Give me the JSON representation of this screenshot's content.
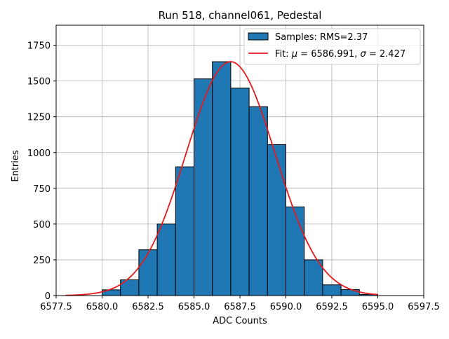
{
  "chart_data": {
    "type": "bar",
    "title": "Run 518, channel061, Pedestal",
    "xlabel": "ADC Counts",
    "ylabel": "Entries",
    "xlim": [
      6577.5,
      6597.5
    ],
    "ylim": [
      0,
      1890
    ],
    "grid": true,
    "legend_position": "top-right",
    "x_ticks": [
      6577.5,
      6580.0,
      6582.5,
      6585.0,
      6587.5,
      6590.0,
      6592.5,
      6595.0,
      6597.5
    ],
    "x_tick_labels": [
      "6577.5",
      "6580.0",
      "6582.5",
      "6585.0",
      "6587.5",
      "6590.0",
      "6592.5",
      "6595.0",
      "6597.5"
    ],
    "y_ticks": [
      0,
      250,
      500,
      750,
      1000,
      1250,
      1500,
      1750
    ],
    "y_tick_labels": [
      "0",
      "250",
      "500",
      "750",
      "1000",
      "1250",
      "1500",
      "1750"
    ],
    "bin_edges": [
      6580,
      6581,
      6582,
      6583,
      6584,
      6585,
      6586,
      6587,
      6588,
      6589,
      6590,
      6591,
      6592,
      6593,
      6594,
      6595
    ],
    "values": [
      40,
      110,
      320,
      500,
      900,
      1515,
      1635,
      1450,
      1320,
      1055,
      620,
      250,
      75,
      42,
      8
    ],
    "series": [
      {
        "name": "Samples: RMS=2.37",
        "kind": "histogram",
        "color": "#1f77b4",
        "edgecolor": "#000000"
      },
      {
        "name": "Fit: μ = 6586.991, σ = 2.427",
        "kind": "line",
        "color": "#e41a1c",
        "mu": 6586.991,
        "sigma": 2.427,
        "amplitude": 1635,
        "x_range": [
          6578,
          6595
        ]
      }
    ],
    "legend": [
      {
        "label": "Samples: RMS=2.37",
        "kind": "patch"
      },
      {
        "label_prefix": "Fit: ",
        "mu_symbol": "μ",
        "mu_text": " = 6586.991, ",
        "sigma_symbol": "σ",
        "sigma_text": " = 2.427",
        "kind": "line"
      }
    ]
  }
}
